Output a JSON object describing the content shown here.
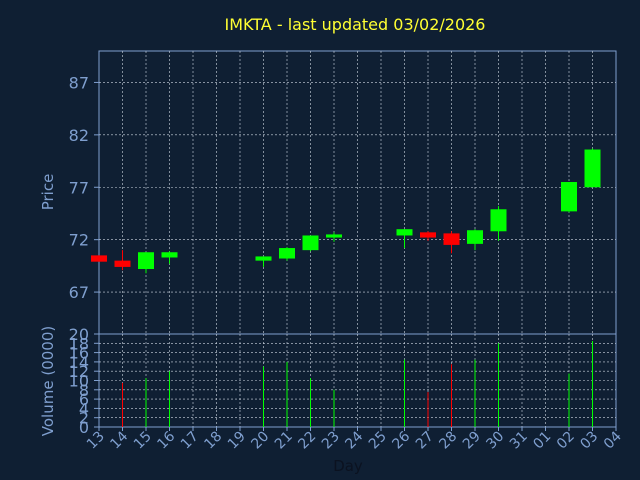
{
  "chart_data": [
    {
      "type": "candlestick",
      "title": "IMKTA - last updated 03/02/2026",
      "ylabel": "Price",
      "ylim": [
        63,
        90
      ],
      "yticks": [
        67,
        72,
        77,
        82,
        87
      ],
      "grid": true,
      "colors": {
        "up": "#00ff00",
        "down": "#ff0000",
        "grid": "#cfd8e3",
        "frame": "#7f9fcf"
      },
      "x": [
        "13",
        "14",
        "15",
        "16",
        "17",
        "18",
        "19",
        "20",
        "21",
        "22",
        "23",
        "24",
        "25",
        "26",
        "27",
        "28",
        "29",
        "30",
        "31",
        "01",
        "02",
        "03",
        "04"
      ],
      "candles": [
        {
          "day": "13",
          "open": 70.5,
          "close": 69.9,
          "high": 70.5,
          "low": 69.9
        },
        {
          "day": "14",
          "open": 70.0,
          "close": 69.4,
          "high": 71.0,
          "low": 69.1
        },
        {
          "day": "15",
          "open": 69.2,
          "close": 70.8,
          "high": 70.8,
          "low": 68.8
        },
        {
          "day": "16",
          "open": 70.3,
          "close": 70.8,
          "high": 70.9,
          "low": 69.7
        },
        {
          "day": "20",
          "open": 70.0,
          "close": 70.4,
          "high": 70.4,
          "low": 69.4
        },
        {
          "day": "21",
          "open": 70.2,
          "close": 71.2,
          "high": 71.3,
          "low": 70.0
        },
        {
          "day": "22",
          "open": 71.0,
          "close": 72.4,
          "high": 72.4,
          "low": 70.9
        },
        {
          "day": "23",
          "open": 72.2,
          "close": 72.5,
          "high": 72.7,
          "low": 71.8
        },
        {
          "day": "26",
          "open": 72.4,
          "close": 73.0,
          "high": 73.0,
          "low": 71.2
        },
        {
          "day": "27",
          "open": 72.7,
          "close": 72.2,
          "high": 72.8,
          "low": 71.9
        },
        {
          "day": "28",
          "open": 72.6,
          "close": 71.5,
          "high": 72.8,
          "low": 70.7
        },
        {
          "day": "29",
          "open": 71.6,
          "close": 72.9,
          "high": 73.0,
          "low": 71.0
        },
        {
          "day": "30",
          "open": 72.8,
          "close": 74.9,
          "high": 75.2,
          "low": 71.9
        },
        {
          "day": "02",
          "open": 74.7,
          "close": 77.5,
          "high": 77.5,
          "low": 74.6
        },
        {
          "day": "03",
          "open": 77.0,
          "close": 80.6,
          "high": 80.7,
          "low": 77.0
        }
      ]
    },
    {
      "type": "bar",
      "ylabel": "Volume (0000)",
      "xlabel": "Day",
      "ylim": [
        0,
        20
      ],
      "yticks": [
        0,
        2,
        4,
        6,
        8,
        10,
        12,
        14,
        16,
        18,
        20
      ],
      "grid": true,
      "volumes": [
        {
          "day": "14",
          "value": 9.5,
          "color": "down"
        },
        {
          "day": "15",
          "value": 10.5,
          "color": "up"
        },
        {
          "day": "16",
          "value": 12.0,
          "color": "up"
        },
        {
          "day": "20",
          "value": 13.0,
          "color": "up"
        },
        {
          "day": "21",
          "value": 14.0,
          "color": "up"
        },
        {
          "day": "22",
          "value": 10.5,
          "color": "up"
        },
        {
          "day": "23",
          "value": 8.0,
          "color": "up"
        },
        {
          "day": "26",
          "value": 14.5,
          "color": "up"
        },
        {
          "day": "27",
          "value": 7.5,
          "color": "down"
        },
        {
          "day": "28",
          "value": 13.5,
          "color": "down"
        },
        {
          "day": "29",
          "value": 14.5,
          "color": "up"
        },
        {
          "day": "30",
          "value": 18.0,
          "color": "up"
        },
        {
          "day": "02",
          "value": 11.5,
          "color": "up"
        },
        {
          "day": "03",
          "value": 18.5,
          "color": "up"
        }
      ]
    }
  ]
}
